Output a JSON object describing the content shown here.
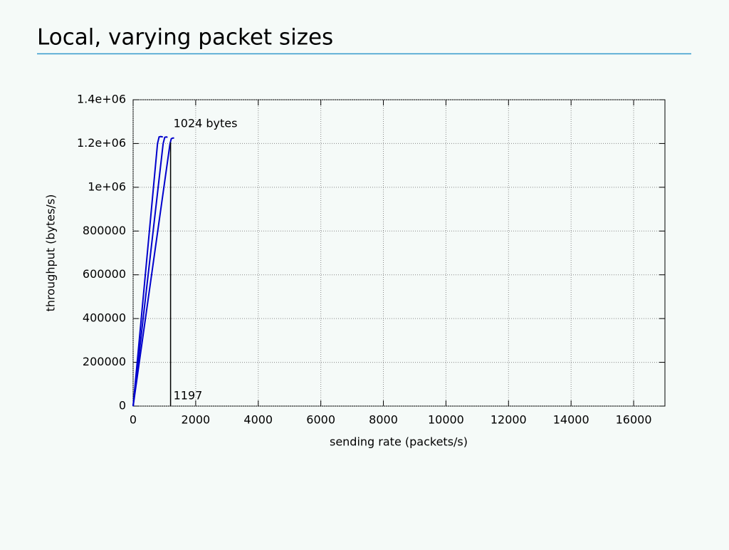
{
  "chart_data": {
    "type": "line",
    "title": "Local, varying packet sizes",
    "xlabel": "sending rate (packets/s)",
    "ylabel": "throughput (bytes/s)",
    "xlim": [
      0,
      17000
    ],
    "xticks": [
      0,
      2000,
      4000,
      6000,
      8000,
      10000,
      12000,
      14000,
      16000
    ],
    "ylim": [
      0,
      1400000
    ],
    "yticks": [
      0,
      200000,
      400000,
      600000,
      800000,
      {
        "value": 1000000,
        "label": "1e+06"
      },
      {
        "value": 1200000,
        "label": "1.2e+06"
      },
      {
        "value": 1400000,
        "label": "1.4e+06"
      }
    ],
    "grid": true,
    "series": [
      {
        "color": "#0000cc",
        "x": [
          0,
          780,
          830,
          880,
          950
        ],
        "values": [
          0,
          1200000,
          1230000,
          1232000,
          1230000
        ]
      },
      {
        "color": "#0000cc",
        "x": [
          0,
          960,
          1010,
          1060,
          1100
        ],
        "values": [
          0,
          1200000,
          1228000,
          1230000,
          1228000
        ]
      },
      {
        "color": "#0000cc",
        "x": [
          0,
          1180,
          1220,
          1270,
          1310
        ],
        "values": [
          0,
          1200000,
          1222000,
          1225000,
          1225000
        ]
      }
    ],
    "marker": {
      "x": 1197,
      "y": 1205000,
      "color": "#000000"
    },
    "annotation": "1024 bytes"
  }
}
